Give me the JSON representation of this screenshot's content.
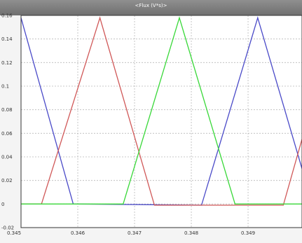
{
  "window": {
    "title": "<Flux (V*s)>"
  },
  "colors": {
    "title_bar": "#7a7a7a",
    "plot_bg": "#ffffff",
    "grid": "#b8b8b8",
    "axes": "#333333"
  },
  "chart_data": {
    "type": "line",
    "title": "<Flux (V*s)>",
    "xlabel": "",
    "ylabel": "",
    "xlim": [
      0.345,
      0.34995
    ],
    "ylim": [
      -0.02,
      0.16
    ],
    "grid": true,
    "xticks": [
      0.345,
      0.346,
      0.347,
      0.348,
      0.349
    ],
    "xtick_labels": [
      "0.345",
      "0.346",
      "0.347",
      "0.348",
      "0.349"
    ],
    "yticks": [
      -0.02,
      0,
      0.02,
      0.04,
      0.06,
      0.08,
      0.1,
      0.12,
      0.14,
      0.16
    ],
    "ytick_labels": [
      "-0.02",
      "0",
      "0.02",
      "0.04",
      "0.06",
      "0.08",
      "0.1",
      "0.12",
      "0.14",
      "0.16"
    ],
    "series": [
      {
        "color": "#4a4ac8",
        "points": [
          [
            0.345,
            0.158
          ],
          [
            0.34592,
            0.0
          ],
          [
            0.34818,
            -0.001
          ],
          [
            0.34917,
            0.158
          ],
          [
            0.34995,
            0.03
          ]
        ]
      },
      {
        "color": "#d05858",
        "points": [
          [
            0.345,
            0.0
          ],
          [
            0.34536,
            0.0
          ],
          [
            0.34639,
            0.158
          ],
          [
            0.34735,
            -0.001
          ],
          [
            0.34962,
            -0.001
          ],
          [
            0.34995,
            0.055
          ]
        ]
      },
      {
        "color": "#38d838",
        "points": [
          [
            0.345,
            0.0
          ],
          [
            0.3468,
            0.0
          ],
          [
            0.34779,
            0.158
          ],
          [
            0.34877,
            0.0
          ],
          [
            0.34995,
            0.0
          ]
        ]
      }
    ]
  }
}
